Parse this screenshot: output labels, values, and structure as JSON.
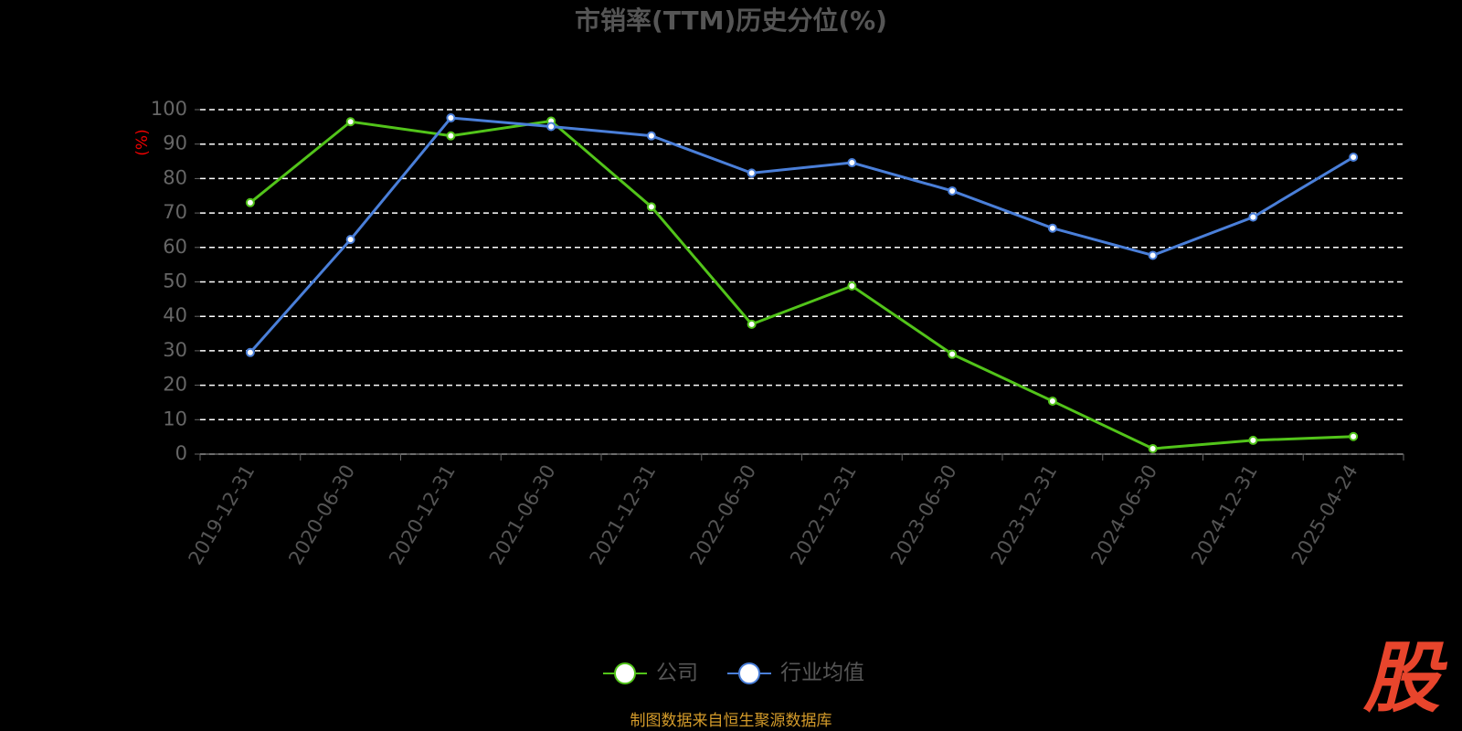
{
  "chart_data": {
    "type": "line",
    "title": "市销率(TTM)历史分位(%)",
    "y_axis_label": "(%)",
    "categories": [
      "2019-12-31",
      "2020-06-30",
      "2020-12-31",
      "2021-06-30",
      "2021-12-31",
      "2022-06-30",
      "2022-12-31",
      "2023-06-30",
      "2023-12-31",
      "2024-06-30",
      "2024-12-31",
      "2025-04-24"
    ],
    "series": [
      {
        "name": "公司",
        "color": "#52c41a",
        "values": [
          73,
          96.5,
          92.4,
          96.7,
          71.8,
          37.7,
          48.8,
          29,
          15.4,
          1.6,
          4,
          5.1
        ]
      },
      {
        "name": "行业均值",
        "color": "#4a7fd9",
        "values": [
          29.5,
          62.3,
          97.6,
          95.1,
          92.4,
          81.6,
          84.6,
          76.4,
          65.6,
          57.7,
          68.8,
          86.2
        ]
      }
    ],
    "ylim": [
      0,
      100
    ],
    "yticks": [
      0,
      10,
      20,
      30,
      40,
      50,
      60,
      70,
      80,
      90,
      100
    ],
    "grid": true,
    "legend": "bottom",
    "source": "制图数据来自恒生聚源数据库",
    "logo": "股"
  }
}
